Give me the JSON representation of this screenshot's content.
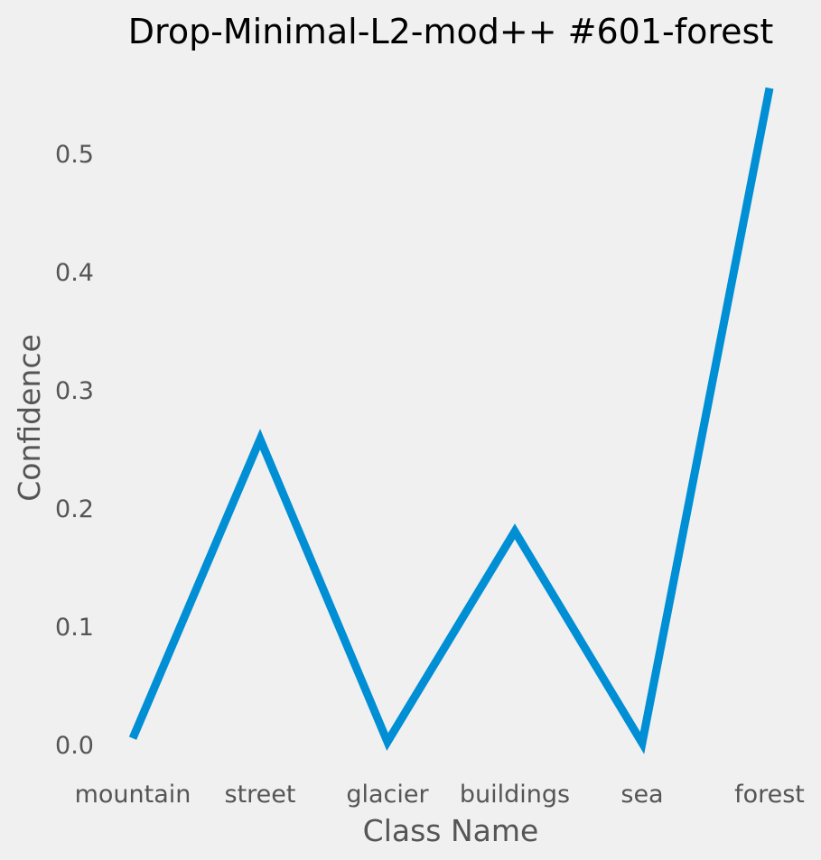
{
  "chart_data": {
    "type": "line",
    "title": "Drop-Minimal-L2-mod++ #601-forest",
    "xlabel": "Class Name",
    "ylabel": "Confidence",
    "categories": [
      "mountain",
      "street",
      "glacier",
      "buildings",
      "sea",
      "forest"
    ],
    "series": [
      {
        "values": [
          0.006,
          0.259,
          0.003,
          0.181,
          0.002,
          0.556
        ]
      }
    ],
    "yticks": [
      "0.0",
      "0.1",
      "0.2",
      "0.3",
      "0.4",
      "0.5"
    ],
    "ylim": [
      -0.02,
      0.58
    ],
    "grid": false,
    "line_color": "#008fd5",
    "background": "#f0f0f0"
  }
}
